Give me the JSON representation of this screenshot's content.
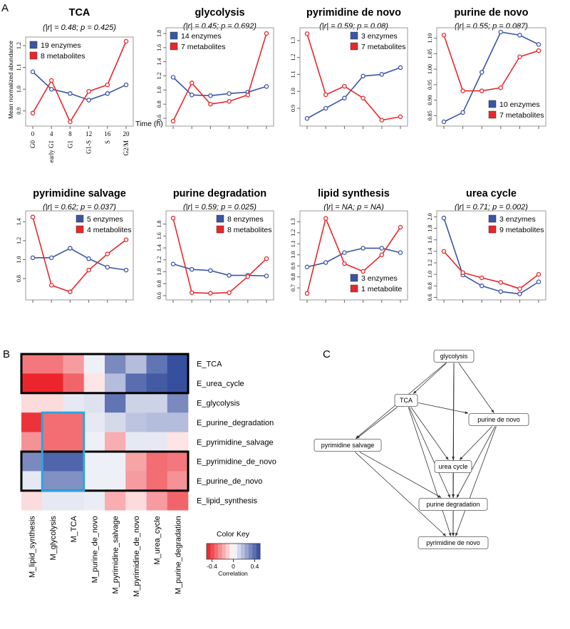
{
  "panels": {
    "A": "A",
    "B": "B",
    "C": "C"
  },
  "colors": {
    "enzymes": "#3a55a4",
    "metabolites": "#e8272b",
    "highlight": "#2aa6e0"
  },
  "panelA": {
    "ylabel": "Mean normalized abundance",
    "xunit": "Time (h)",
    "time_labels": [
      "0",
      "4",
      "8",
      "12",
      "16",
      "20"
    ],
    "phase_labels": [
      "G0",
      "early G1",
      "G1",
      "G1-S",
      "S",
      "G2/M"
    ]
  },
  "chart_data": [
    {
      "type": "line",
      "title": "TCA",
      "subtitle": "(|r| = 0.48; p = 0.425)",
      "x": [
        0,
        4,
        8,
        12,
        16,
        20
      ],
      "ylim": [
        0.85,
        1.22
      ],
      "yticks": [
        "0.9",
        "1.0",
        "1.1",
        "1.2"
      ],
      "ytick_values": [
        0.9,
        1.0,
        1.1,
        1.2
      ],
      "legend": "top-left",
      "series": [
        {
          "name": "19 enzymes",
          "values": [
            1.08,
            1.0,
            0.98,
            0.95,
            0.98,
            1.02
          ]
        },
        {
          "name": "8 metabolites",
          "values": [
            0.89,
            1.04,
            0.85,
            0.99,
            1.02,
            1.22
          ]
        }
      ]
    },
    {
      "type": "line",
      "title": "glycolysis",
      "subtitle": "(|r| = 0.45; p = 0.692)",
      "x": [
        0,
        4,
        8,
        12,
        16,
        20
      ],
      "ylim": [
        0.55,
        1.82
      ],
      "yticks": [
        "0.6",
        "0.8",
        "1.0",
        "1.2",
        "1.4",
        "1.6",
        "1.8"
      ],
      "ytick_values": [
        0.6,
        0.8,
        1.0,
        1.2,
        1.4,
        1.6,
        1.8
      ],
      "legend": "top-left",
      "series": [
        {
          "name": "14 enzymes",
          "values": [
            1.18,
            0.93,
            0.92,
            0.95,
            0.97,
            1.05
          ]
        },
        {
          "name": "7 metabolites",
          "values": [
            0.56,
            1.1,
            0.8,
            0.84,
            0.93,
            1.8
          ]
        }
      ]
    },
    {
      "type": "line",
      "title": "pyrimidine de novo",
      "subtitle": "(|r| = 0.59; p = 0.08)",
      "x": [
        0,
        4,
        8,
        12,
        16,
        20
      ],
      "ylim": [
        0.82,
        1.35
      ],
      "yticks": [
        "0.9",
        "1.0",
        "1.1",
        "1.2",
        "1.3"
      ],
      "ytick_values": [
        0.9,
        1.0,
        1.1,
        1.2,
        1.3
      ],
      "legend": "top-right",
      "series": [
        {
          "name": "3 enzymes",
          "values": [
            0.84,
            0.9,
            0.96,
            1.09,
            1.1,
            1.14
          ]
        },
        {
          "name": "7 metabolites",
          "values": [
            1.34,
            0.98,
            1.03,
            0.96,
            0.83,
            0.85
          ]
        }
      ]
    },
    {
      "type": "line",
      "title": "purine de novo",
      "subtitle": "(|r| = 0.55; p = 0.087)",
      "x": [
        0,
        4,
        8,
        12,
        16,
        20
      ],
      "ylim": [
        0.83,
        1.12
      ],
      "yticks": [
        "0.85",
        "0.90",
        "0.95",
        "1.00",
        "1.05",
        "1.10"
      ],
      "ytick_values": [
        0.85,
        0.9,
        0.95,
        1.0,
        1.05,
        1.1
      ],
      "legend": "bottom-right",
      "series": [
        {
          "name": "10 enzymes",
          "values": [
            0.83,
            0.86,
            0.99,
            1.12,
            1.11,
            1.08
          ]
        },
        {
          "name": "7 metabolites",
          "values": [
            1.11,
            0.93,
            0.93,
            0.94,
            1.04,
            1.06
          ]
        }
      ]
    },
    {
      "type": "line",
      "title": "pyrimidine salvage",
      "subtitle": "(|r| = 0.62; p = 0.037)",
      "x": [
        0,
        4,
        8,
        12,
        16,
        20
      ],
      "ylim": [
        0.62,
        1.47
      ],
      "yticks": [
        "0.8",
        "1.0",
        "1.2",
        "1.4"
      ],
      "ytick_values": [
        0.8,
        1.0,
        1.2,
        1.4
      ],
      "legend": "top-right",
      "series": [
        {
          "name": "5 enzymes",
          "values": [
            1.02,
            1.02,
            1.12,
            1.01,
            0.92,
            0.89
          ]
        },
        {
          "name": "4 metabolites",
          "values": [
            1.45,
            0.73,
            0.66,
            0.89,
            1.06,
            1.21
          ]
        }
      ]
    },
    {
      "type": "line",
      "title": "purine degradation",
      "subtitle": "(|r| = 0.59; p = 0.025)",
      "x": [
        0,
        4,
        8,
        12,
        16,
        20
      ],
      "ylim": [
        0.6,
        1.95
      ],
      "yticks": [
        "0.6",
        "0.8",
        "1.0",
        "1.2",
        "1.4",
        "1.6",
        "1.8"
      ],
      "ytick_values": [
        0.6,
        0.8,
        1.0,
        1.2,
        1.4,
        1.6,
        1.8
      ],
      "legend": "top-right",
      "series": [
        {
          "name": "8 enzymes",
          "values": [
            1.13,
            1.04,
            1.02,
            0.94,
            0.94,
            0.93
          ]
        },
        {
          "name": "8 metabolites",
          "values": [
            1.9,
            0.65,
            0.64,
            0.65,
            0.92,
            1.22
          ]
        }
      ]
    },
    {
      "type": "line",
      "title": "lipid synthesis",
      "subtitle": "(|r| = NA; p = NA)",
      "x": [
        0,
        4,
        8,
        12,
        16,
        20
      ],
      "ylim": [
        0.63,
        1.36
      ],
      "yticks": [
        "0.7",
        "0.8",
        "0.9",
        "1.0",
        "1.1",
        "1.2",
        "1.3"
      ],
      "ytick_values": [
        0.7,
        0.8,
        0.9,
        1.0,
        1.1,
        1.2,
        1.3
      ],
      "legend": "bottom-right",
      "series": [
        {
          "name": "3 enzymes",
          "values": [
            0.89,
            0.93,
            1.02,
            1.06,
            1.06,
            1.02
          ]
        },
        {
          "name": "1 metabolite",
          "values": [
            0.65,
            1.33,
            0.92,
            0.85,
            1.0,
            1.25
          ]
        }
      ]
    },
    {
      "type": "line",
      "title": "urea cycle",
      "subtitle": "(|r| = 0.71; p = 0.002)",
      "x": [
        0,
        4,
        8,
        12,
        16,
        20
      ],
      "ylim": [
        0.63,
        2.03
      ],
      "yticks": [
        "0.6",
        "0.8",
        "1.0",
        "1.2",
        "1.4",
        "1.6",
        "1.8",
        "2.0"
      ],
      "ytick_values": [
        0.6,
        0.8,
        1.0,
        1.2,
        1.4,
        1.6,
        1.8,
        2.0
      ],
      "legend": "top-right",
      "series": [
        {
          "name": "3 enzymes",
          "values": [
            1.98,
            0.99,
            0.8,
            0.7,
            0.66,
            0.87
          ]
        },
        {
          "name": "9 metabolites",
          "values": [
            1.4,
            1.03,
            0.94,
            0.86,
            0.75,
            1.0
          ]
        }
      ]
    },
    {
      "type": "heatmap",
      "title": "",
      "rows": [
        "E_TCA",
        "E_urea_cycle",
        "E_glycolysis",
        "E_purine_degradation",
        "E_pyrimidine_salvage",
        "E_pyrimidine_de_novo",
        "E_purine_de_novo",
        "E_lipid_synthesis"
      ],
      "columns": [
        "M_lipid_synthesis",
        "M_glycolysis",
        "M_TCA",
        "M_purine_de_novo",
        "M_pyrimidine_salvage",
        "M_pyrimidine_de_novo",
        "M_urea_cycle",
        "M_purine_degradation"
      ],
      "values": [
        [
          -0.3,
          -0.3,
          -0.22,
          0.04,
          0.32,
          0.18,
          0.38,
          0.48
        ],
        [
          -0.48,
          -0.48,
          -0.34,
          -0.06,
          0.18,
          0.4,
          0.45,
          0.48
        ],
        [
          -0.08,
          -0.08,
          0.06,
          0.08,
          0.38,
          0.12,
          0.12,
          0.32
        ],
        [
          -0.45,
          -0.32,
          -0.32,
          0.06,
          0.1,
          0.16,
          0.18,
          0.18
        ],
        [
          -0.24,
          -0.32,
          -0.32,
          0.04,
          -0.18,
          0.06,
          0.06,
          -0.06
        ],
        [
          0.32,
          0.42,
          0.42,
          0.04,
          0.04,
          -0.2,
          -0.32,
          -0.3
        ],
        [
          0.06,
          0.3,
          0.3,
          0.04,
          0.04,
          -0.22,
          -0.32,
          -0.24
        ],
        [
          -0.08,
          0.06,
          0.06,
          0.05,
          -0.18,
          -0.08,
          -0.22,
          -0.34
        ]
      ]
    }
  ],
  "colorkey": {
    "title": "Color Key",
    "xlabel": "Correlation",
    "ticks": [
      "-0.4",
      "0",
      "0.4"
    ],
    "tick_values": [
      -0.4,
      0,
      0.4
    ],
    "range": [
      -0.5,
      0.5
    ]
  },
  "graph": {
    "nodes": [
      {
        "id": "glycolysis",
        "label": "glycolysis"
      },
      {
        "id": "tca",
        "label": "TCA"
      },
      {
        "id": "purine_de_novo",
        "label": "purine de novo"
      },
      {
        "id": "pyrimidine_salvage",
        "label": "pyrimidine salvage"
      },
      {
        "id": "urea_cycle",
        "label": "urea cycle"
      },
      {
        "id": "purine_degradation",
        "label": "purine degradation"
      },
      {
        "id": "pyrimidine_de_novo",
        "label": "pyrimidine de novo"
      }
    ],
    "edges": [
      [
        "glycolysis",
        "tca"
      ],
      [
        "glycolysis",
        "purine_de_novo"
      ],
      [
        "glycolysis",
        "pyrimidine_salvage"
      ],
      [
        "glycolysis",
        "urea_cycle"
      ],
      [
        "glycolysis",
        "purine_degradation"
      ],
      [
        "glycolysis",
        "pyrimidine_de_novo"
      ],
      [
        "tca",
        "purine_de_novo"
      ],
      [
        "tca",
        "pyrimidine_salvage"
      ],
      [
        "tca",
        "urea_cycle"
      ],
      [
        "tca",
        "purine_degradation"
      ],
      [
        "tca",
        "pyrimidine_de_novo"
      ],
      [
        "purine_de_novo",
        "urea_cycle"
      ],
      [
        "purine_de_novo",
        "purine_degradation"
      ],
      [
        "purine_de_novo",
        "pyrimidine_de_novo"
      ],
      [
        "pyrimidine_salvage",
        "purine_degradation"
      ],
      [
        "pyrimidine_salvage",
        "pyrimidine_de_novo"
      ],
      [
        "urea_cycle",
        "purine_degradation"
      ],
      [
        "purine_degradation",
        "pyrimidine_de_novo"
      ]
    ]
  }
}
